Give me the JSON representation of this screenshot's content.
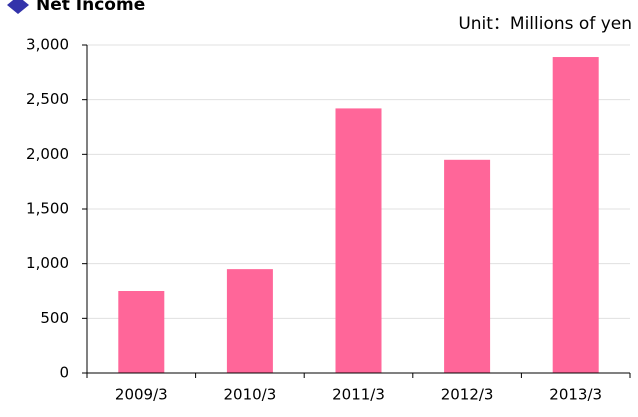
{
  "chart_data": {
    "type": "bar",
    "title": "Net Income",
    "subtitle": "Unit：Millions of yen",
    "categories": [
      "2009/3",
      "2010/3",
      "2011/3",
      "2012/3",
      "2013/3"
    ],
    "values": [
      750,
      950,
      2420,
      1950,
      2890
    ],
    "color": "#ff6699",
    "ylim": [
      0,
      3000
    ],
    "yticks": [
      0,
      500,
      {
        "value": 1000,
        "label": "1,000"
      },
      {
        "value": 1500,
        "label": "1,500"
      },
      {
        "value": 2000,
        "label": "2,000"
      },
      {
        "value": 2500,
        "label": "2,500"
      },
      {
        "value": 3000,
        "label": "3,000"
      }
    ],
    "grid": true
  }
}
